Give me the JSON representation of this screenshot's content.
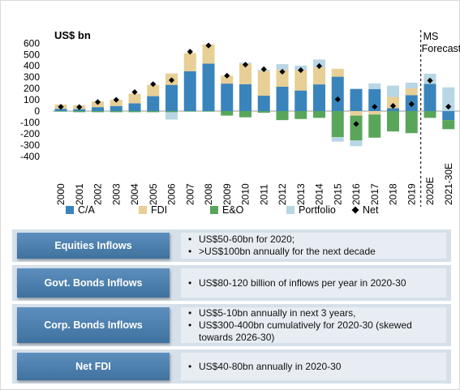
{
  "chart_data": {
    "type": "bar",
    "unit_label": "US$ bn",
    "annotation": "MS Forecast",
    "categories": [
      "2000",
      "2001",
      "2002",
      "2003",
      "2004",
      "2005",
      "2006",
      "2007",
      "2008",
      "2009",
      "2010",
      "2011",
      "2012",
      "2013",
      "2014",
      "2015",
      "2016",
      "2017",
      "2018",
      "2019",
      "2020E",
      "2021-30E"
    ],
    "ylim": [
      -400,
      600
    ],
    "yticks": [
      600,
      500,
      400,
      300,
      200,
      100,
      0,
      -100,
      -200,
      -300,
      -400
    ],
    "series": [
      {
        "name": "C/A",
        "color": "#3a84bc",
        "values": [
          20,
          17,
          35,
          45,
          69,
          132,
          232,
          353,
          420,
          243,
          238,
          136,
          215,
          182,
          236,
          304,
          196,
          195,
          25,
          141,
          240,
          -80
        ]
      },
      {
        "name": "FDI",
        "color": "#e8cf95",
        "values": [
          38,
          35,
          50,
          55,
          85,
          100,
          100,
          160,
          170,
          70,
          180,
          220,
          150,
          180,
          150,
          70,
          -40,
          -30,
          100,
          60,
          0,
          0
        ]
      },
      {
        "name": "E&O",
        "color": "#59a65b",
        "values": [
          -5,
          -10,
          -10,
          -10,
          -10,
          -10,
          -10,
          -5,
          -5,
          -40,
          -55,
          -15,
          -80,
          -70,
          -60,
          -230,
          -220,
          -205,
          -180,
          -195,
          -60,
          -80
        ]
      },
      {
        "name": "Portfolio",
        "color": "#b8d6e4",
        "values": [
          0,
          0,
          0,
          0,
          0,
          0,
          -65,
          0,
          0,
          0,
          10,
          10,
          50,
          40,
          70,
          -40,
          -50,
          50,
          100,
          50,
          90,
          210
        ]
      }
    ],
    "net": {
      "name": "Net",
      "values": [
        38,
        35,
        80,
        100,
        168,
        238,
        273,
        525,
        580,
        313,
        410,
        370,
        348,
        362,
        398,
        104,
        -114,
        38,
        46,
        62,
        270,
        39
      ]
    },
    "forecast_start_index": 20
  },
  "panels": [
    {
      "label": "Equities Inflows",
      "bullets": [
        "US$50-60bn for 2020;",
        ">US$100bn annually for the next decade"
      ]
    },
    {
      "label": "Govt. Bonds Inflows",
      "bullets": [
        "US$80-120 billion of inflows per year  in 2020-30"
      ]
    },
    {
      "label": "Corp. Bonds Inflows",
      "bullets": [
        "US$5-10bn annually in next 3 years,",
        "US$300-400bn cumulatively for 2020-30 (skewed towards 2026-30)"
      ]
    },
    {
      "label": "Net FDI",
      "bullets": [
        "US$40-80bn annually in 2020-30"
      ]
    }
  ]
}
